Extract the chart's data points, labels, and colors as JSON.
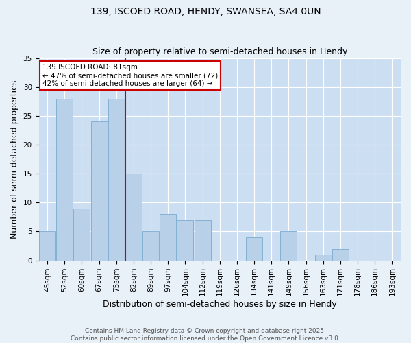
{
  "title1": "139, ISCOED ROAD, HENDY, SWANSEA, SA4 0UN",
  "title2": "Size of property relative to semi-detached houses in Hendy",
  "xlabel": "Distribution of semi-detached houses by size in Hendy",
  "ylabel": "Number of semi-detached properties",
  "categories": [
    "45sqm",
    "52sqm",
    "60sqm",
    "67sqm",
    "75sqm",
    "82sqm",
    "89sqm",
    "97sqm",
    "104sqm",
    "112sqm",
    "119sqm",
    "126sqm",
    "134sqm",
    "141sqm",
    "149sqm",
    "156sqm",
    "163sqm",
    "171sqm",
    "178sqm",
    "186sqm",
    "193sqm"
  ],
  "values": [
    5,
    28,
    9,
    24,
    28,
    15,
    5,
    8,
    7,
    7,
    0,
    0,
    4,
    0,
    5,
    0,
    1,
    2,
    0,
    0,
    0
  ],
  "bar_color": "#b8d0e8",
  "bar_edge_color": "#7aaad0",
  "highlight_index": 5,
  "highlight_line_color": "#cc0000",
  "annotation_text": "139 ISCOED ROAD: 81sqm\n← 47% of semi-detached houses are smaller (72)\n42% of semi-detached houses are larger (64) →",
  "annotation_box_color": "#cc0000",
  "ylim": [
    0,
    35
  ],
  "yticks": [
    0,
    5,
    10,
    15,
    20,
    25,
    30,
    35
  ],
  "bg_color": "#ccdff2",
  "fig_bg_color": "#e8f0f8",
  "footer_text": "Contains HM Land Registry data © Crown copyright and database right 2025.\nContains public sector information licensed under the Open Government Licence v3.0.",
  "title_fontsize": 10,
  "subtitle_fontsize": 9,
  "axis_label_fontsize": 9,
  "tick_fontsize": 7.5,
  "footer_fontsize": 6.5
}
